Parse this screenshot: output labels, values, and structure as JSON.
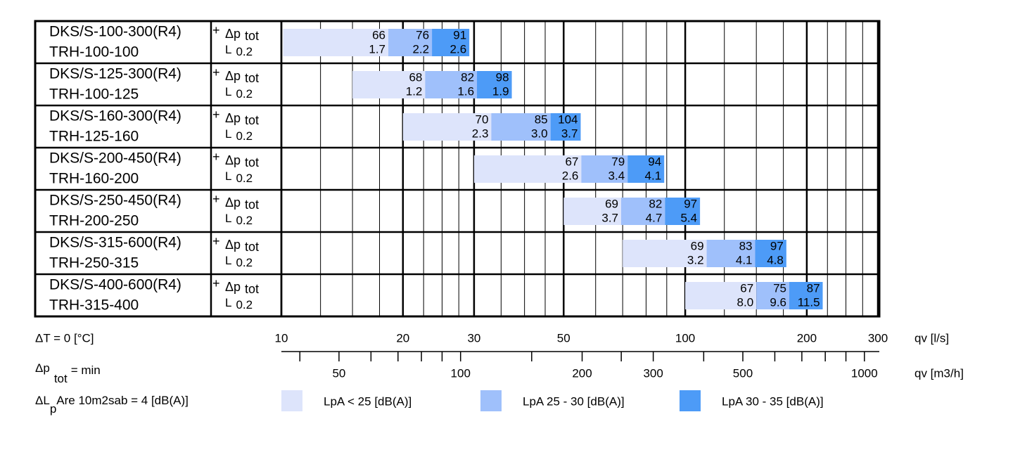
{
  "chart_data": {
    "type": "range-bar",
    "xlog": true,
    "xlim": [
      10,
      300
    ],
    "xticks": [
      10,
      20,
      30,
      50,
      100,
      200,
      300
    ],
    "xgrid_minor": [
      12.5,
      15,
      17.5,
      22.5,
      25,
      27.5,
      35,
      40,
      45,
      60,
      70,
      80,
      90,
      125,
      150,
      175,
      225,
      250,
      275
    ],
    "xlabel": "qv [l/s]",
    "x2lim": [
      36,
      1080
    ],
    "x2ticks": [
      50,
      100,
      200,
      300,
      500,
      1000
    ],
    "x2minorticks": [
      40,
      60,
      70,
      80,
      90,
      150,
      250,
      400,
      600,
      700,
      800,
      900
    ],
    "x2label": "qv [m3/h]",
    "connector": "+",
    "dp_label": {
      "main": "Δp",
      "sub": "tot"
    },
    "l_label": {
      "main": "L",
      "sub": "0.2"
    },
    "rows": [
      {
        "lines": [
          "DKS/S-100-300(R4)",
          "TRH-100-100"
        ],
        "start": 10.1
      },
      {
        "lines": [
          "DKS/S-125-300(R4)",
          "TRH-100-125"
        ],
        "start": 15.0
      },
      {
        "lines": [
          "DKS/S-160-300(R4)",
          "TRH-125-160"
        ],
        "start": 20
      },
      {
        "lines": [
          "DKS/S-200-450(R4)",
          "TRH-160-200"
        ],
        "start": 30
      },
      {
        "lines": [
          "DKS/S-250-450(R4)",
          "TRH-200-250"
        ],
        "start": 50
      },
      {
        "lines": [
          "DKS/S-315-600(R4)",
          "TRH-250-315"
        ],
        "start": 70
      },
      {
        "lines": [
          "DKS/S-400-600(R4)",
          "TRH-315-400"
        ],
        "start": 100
      }
    ],
    "series": [
      {
        "name": "LpA < 25 [dB(A)]",
        "color": "#dde4fb",
        "x_end": [
          18.4,
          22.7,
          33.1,
          55.3,
          69.4,
          113,
          150
        ],
        "dp": [
          66,
          68,
          70,
          67,
          69,
          69,
          67
        ],
        "L": [
          1.7,
          1.2,
          2.3,
          2.6,
          3.7,
          3.2,
          8.0
        ],
        "L_labels": [
          "1.7",
          "1.2",
          "2.3",
          "2.6",
          "3.7",
          "3.2",
          "8.0"
        ]
      },
      {
        "name": "LpA 25 - 30 [dB(A)]",
        "color": "#9fc0fb",
        "x_end": [
          23.6,
          30.5,
          46.4,
          72.0,
          89.1,
          149,
          181
        ],
        "dp": [
          76,
          82,
          85,
          79,
          82,
          83,
          75
        ],
        "L": [
          2.2,
          1.6,
          3.0,
          3.4,
          4.7,
          4.1,
          9.6
        ],
        "L_labels": [
          "2.2",
          "1.6",
          "3.0",
          "3.4",
          "4.7",
          "4.1",
          "9.6"
        ]
      },
      {
        "name": "LpA 30 - 35 [dB(A)]",
        "color": "#4d9bf7",
        "x_end": [
          29.2,
          37.2,
          55.1,
          88.7,
          108.8,
          178,
          219
        ],
        "dp": [
          91,
          98,
          104,
          94,
          97,
          97,
          87
        ],
        "L": [
          2.6,
          1.9,
          3.7,
          4.1,
          5.4,
          4.8,
          11.5
        ],
        "L_labels": [
          "2.6",
          "1.9",
          "3.7",
          "4.1",
          "5.4",
          "4.8",
          "11.5"
        ]
      }
    ],
    "notes": {
      "delta_t": "ΔT = 0 [°C]",
      "dp_min": {
        "main": "Δp",
        "sub": "tot",
        "rest": "= min"
      },
      "noise": {
        "main": "ΔL",
        "sub": "p",
        "rest": "Are 10m2sab = 4 [dB(A)]"
      }
    }
  }
}
